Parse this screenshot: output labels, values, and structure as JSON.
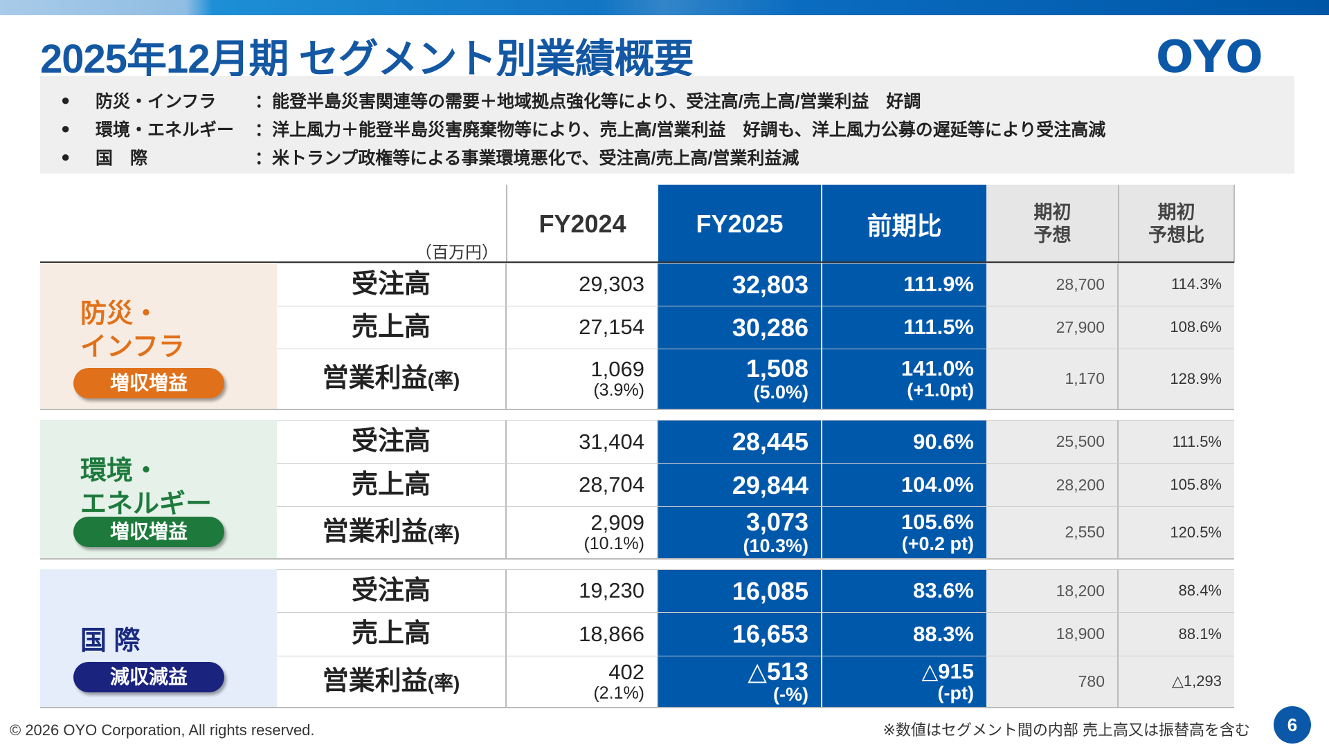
{
  "title": "2025年12月期 セグメント別業績概要",
  "logo": "OYO",
  "summary": [
    {
      "bullet": "●",
      "segment": "防災・インフラ",
      "text": "：能登半島災害関連等の需要＋地域拠点強化等により、受注高/売上高/営業利益　好調"
    },
    {
      "bullet": "●",
      "segment": "環境・エネルギー",
      "text": "：洋上風力＋能登半島災害廃棄物等により、売上高/営業利益　好調も、洋上風力公募の遅延等により受注高減"
    },
    {
      "bullet": "●",
      "segment": "国　際",
      "text": "：米トランプ政権等による事業環境悪化で、受注高/売上高/営業利益減"
    }
  ],
  "header": {
    "unit": "（百万円）",
    "fy2024": "FY2024",
    "fy2025": "FY2025",
    "yoy": "前期比",
    "forecast": "期初\n予想",
    "forecast_ratio": "期初\n予想比"
  },
  "sections": [
    {
      "name": "防災・\nインフラ",
      "badge": "増収増益",
      "color": "#e0711a",
      "badge_color": "#e0711a",
      "bg": "#f7ece3",
      "rows": [
        {
          "item": "受注高",
          "fy2024": "29,303",
          "fy2025": "32,803",
          "yoy": "111.9%",
          "forecast": "28,700",
          "forecast_ratio": "114.3%"
        },
        {
          "item": "売上高",
          "fy2024": "27,154",
          "fy2025": "30,286",
          "yoy": "111.5%",
          "forecast": "27,900",
          "forecast_ratio": "108.6%"
        },
        {
          "item": "営業利益",
          "item_sub": "(率)",
          "fy2024": "1,069",
          "fy2024_sub": "(3.9%)",
          "fy2025": "1,508",
          "fy2025_sub": "(5.0%)",
          "yoy": "141.0%",
          "yoy_sub": "(+1.0pt)",
          "forecast": "1,170",
          "forecast_ratio": "128.9%"
        }
      ]
    },
    {
      "name": "環境・\nエネルギー",
      "badge": "増収増益",
      "color": "#1e7a3c",
      "badge_color": "#1e7a3c",
      "bg": "#e5f1e9",
      "rows": [
        {
          "item": "受注高",
          "fy2024": "31,404",
          "fy2025": "28,445",
          "yoy": "90.6%",
          "forecast": "25,500",
          "forecast_ratio": "111.5%"
        },
        {
          "item": "売上高",
          "fy2024": "28,704",
          "fy2025": "29,844",
          "yoy": "104.0%",
          "forecast": "28,200",
          "forecast_ratio": "105.8%"
        },
        {
          "item": "営業利益",
          "item_sub": "(率)",
          "fy2024": "2,909",
          "fy2024_sub": "(10.1%)",
          "fy2025": "3,073",
          "fy2025_sub": "(10.3%)",
          "yoy": "105.6%",
          "yoy_sub": "(+0.2 pt)",
          "forecast": "2,550",
          "forecast_ratio": "120.5%"
        }
      ]
    },
    {
      "name": "国 際",
      "badge": "減収減益",
      "color": "#1a2a80",
      "badge_color": "#1a237e",
      "bg": "#e5edfa",
      "rows": [
        {
          "item": "受注高",
          "fy2024": "19,230",
          "fy2025": "16,085",
          "yoy": "83.6%",
          "forecast": "18,200",
          "forecast_ratio": "88.4%"
        },
        {
          "item": "売上高",
          "fy2024": "18,866",
          "fy2025": "16,653",
          "yoy": "88.3%",
          "forecast": "18,900",
          "forecast_ratio": "88.1%"
        },
        {
          "item": "営業利益",
          "item_sub": "(率)",
          "fy2024": "402",
          "fy2024_sub": "(2.1%)",
          "fy2025": "△513",
          "fy2025_sub": "(-%)",
          "yoy": "△915",
          "yoy_sub": "(-pt)",
          "forecast": "780",
          "forecast_ratio": "△1,293"
        }
      ]
    }
  ],
  "footer": {
    "copyright": "© 2026 OYO Corporation, All rights reserved.",
    "note": "※数値はセグメント間の内部 売上高又は振替高を含む",
    "page": "6"
  }
}
